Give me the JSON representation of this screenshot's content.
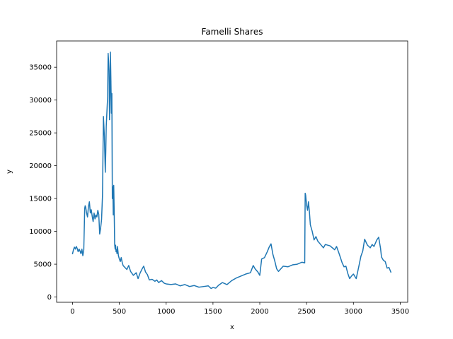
{
  "chart_data": {
    "type": "line",
    "title": "Famelli Shares",
    "xlabel": "x",
    "ylabel": "y",
    "xlim": [
      -170,
      3580
    ],
    "ylim": [
      -800,
      39000
    ],
    "xticks": [
      0,
      500,
      1000,
      1500,
      2000,
      2500,
      3000,
      3500
    ],
    "yticks": [
      0,
      5000,
      10000,
      15000,
      20000,
      25000,
      30000,
      35000
    ],
    "grid": false,
    "series": [
      {
        "color": "#1f77b4",
        "x": [
          0,
          10,
          20,
          30,
          40,
          50,
          60,
          70,
          80,
          90,
          100,
          110,
          120,
          130,
          135,
          140,
          150,
          160,
          170,
          180,
          190,
          200,
          210,
          220,
          230,
          240,
          250,
          260,
          270,
          280,
          290,
          300,
          310,
          320,
          330,
          340,
          350,
          355,
          360,
          365,
          370,
          375,
          380,
          385,
          390,
          395,
          400,
          405,
          410,
          415,
          420,
          425,
          430,
          435,
          440,
          445,
          450,
          455,
          460,
          465,
          470,
          475,
          480,
          490,
          500,
          510,
          520,
          530,
          540,
          560,
          580,
          600,
          620,
          650,
          680,
          700,
          720,
          740,
          760,
          780,
          800,
          820,
          850,
          880,
          900,
          920,
          950,
          980,
          1000,
          1050,
          1100,
          1150,
          1200,
          1250,
          1300,
          1350,
          1400,
          1450,
          1480,
          1500,
          1530,
          1560,
          1600,
          1650,
          1700,
          1750,
          1800,
          1850,
          1900,
          1930,
          1950,
          1980,
          2000,
          2020,
          2050,
          2080,
          2100,
          2120,
          2140,
          2160,
          2180,
          2200,
          2250,
          2300,
          2350,
          2400,
          2450,
          2480,
          2485,
          2490,
          2500,
          2510,
          2520,
          2530,
          2540,
          2560,
          2580,
          2600,
          2620,
          2650,
          2680,
          2700,
          2750,
          2800,
          2820,
          2850,
          2880,
          2900,
          2920,
          2940,
          2960,
          2980,
          3000,
          3030,
          3060,
          3080,
          3100,
          3120,
          3150,
          3180,
          3200,
          3220,
          3250,
          3270,
          3290,
          3300,
          3320,
          3340,
          3360,
          3380,
          3400
        ],
        "y": [
          6600,
          7200,
          7600,
          7300,
          7700,
          7400,
          6900,
          7300,
          7000,
          6600,
          7300,
          6300,
          7200,
          13500,
          13900,
          13700,
          12800,
          12200,
          13800,
          14500,
          12800,
          13300,
          12300,
          11500,
          12800,
          11900,
          12500,
          12200,
          13200,
          12600,
          9600,
          10500,
          11800,
          15500,
          27500,
          24500,
          19000,
          22000,
          26000,
          27500,
          29000,
          30500,
          37100,
          36000,
          34500,
          27000,
          30500,
          37300,
          33000,
          28000,
          31000,
          15000,
          16800,
          12500,
          17000,
          13000,
          8000,
          7300,
          7900,
          6900,
          7200,
          6600,
          7700,
          6300,
          5800,
          5400,
          6000,
          5300,
          4800,
          4500,
          4200,
          4800,
          3900,
          3300,
          3700,
          2800,
          3600,
          4200,
          4700,
          3800,
          3400,
          2600,
          2700,
          2400,
          2600,
          2200,
          2500,
          2100,
          2000,
          1900,
          2000,
          1700,
          1900,
          1600,
          1750,
          1500,
          1600,
          1700,
          1300,
          1450,
          1350,
          1800,
          2200,
          1900,
          2500,
          2900,
          3200,
          3500,
          3700,
          4800,
          4300,
          3800,
          3300,
          5800,
          6000,
          6900,
          7600,
          8100,
          6500,
          5500,
          4300,
          3900,
          4700,
          4600,
          4900,
          5000,
          5300,
          5200,
          15800,
          15500,
          14000,
          13200,
          14500,
          13000,
          11000,
          10000,
          8700,
          9200,
          8500,
          8000,
          7500,
          8000,
          7800,
          7200,
          7700,
          6500,
          5200,
          4600,
          4700,
          3600,
          2800,
          3200,
          3500,
          2800,
          4800,
          6200,
          7000,
          8800,
          7900,
          7500,
          8000,
          7700,
          8700,
          9100,
          7400,
          6100,
          5600,
          5400,
          4400,
          4500,
          3800
        ]
      }
    ]
  }
}
